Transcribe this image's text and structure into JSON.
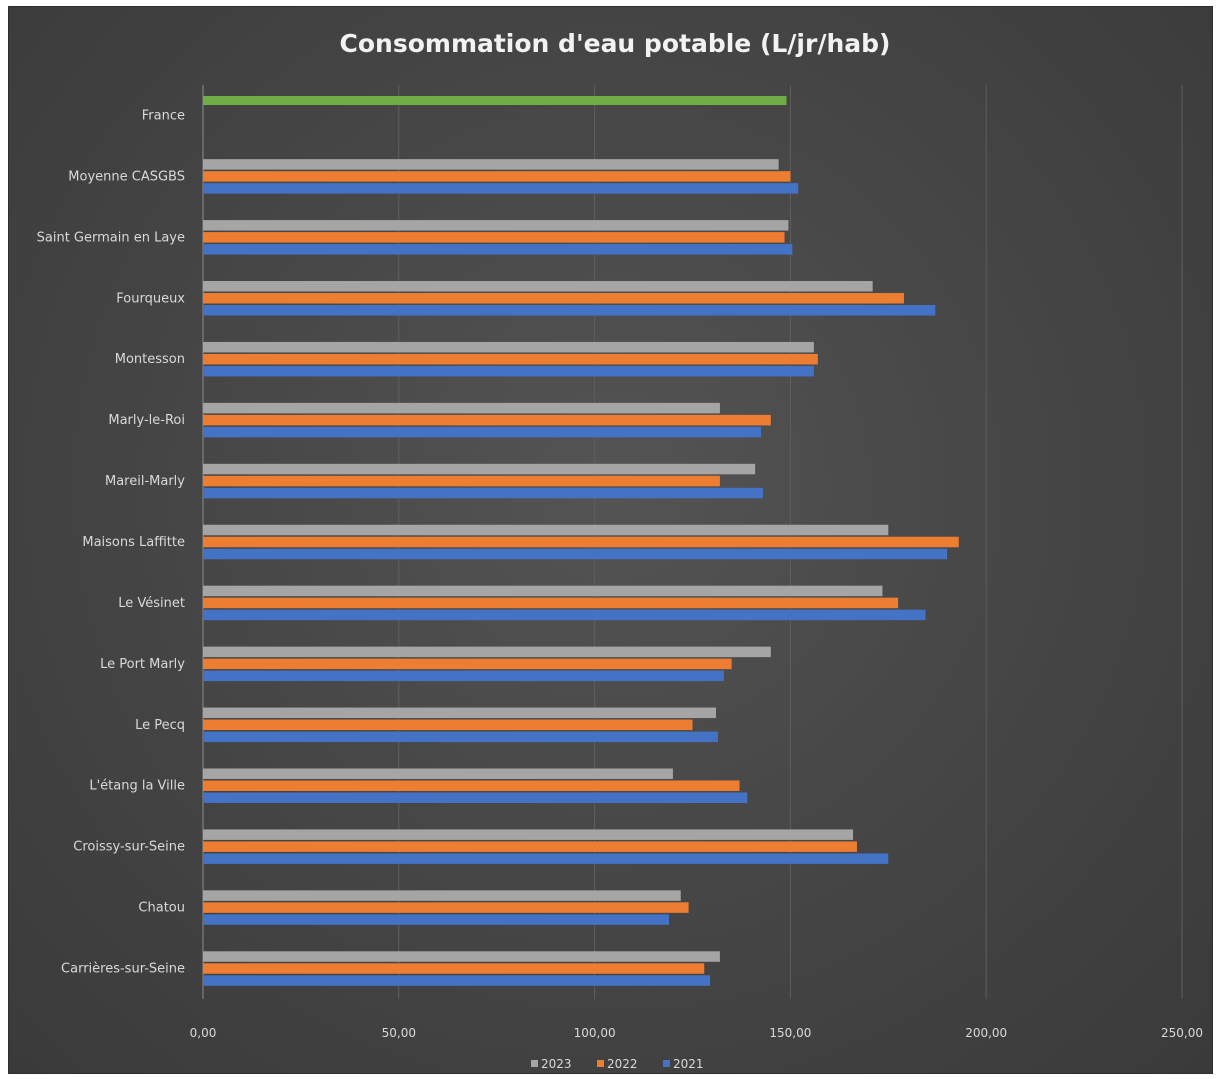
{
  "chart_data": {
    "type": "bar",
    "orientation": "horizontal",
    "title": "Consommation d'eau potable (L/jr/hab)",
    "xlabel": "",
    "ylabel": "",
    "xlim": [
      0,
      250
    ],
    "x_ticks": [
      "0,00",
      "50,00",
      "100,00",
      "150,00",
      "200,00",
      "250,00"
    ],
    "grid": true,
    "legend_position": "bottom",
    "categories": [
      "France",
      "Moyenne CASGBS",
      "Saint Germain en Laye",
      "Fourqueux",
      "Montesson",
      "Marly-le-Roi",
      "Mareil-Marly",
      "Maisons Laffitte",
      "Le Vésinet",
      "Le Port Marly",
      "Le Pecq",
      "L'étang la Ville",
      "Croissy-sur-Seine",
      "Chatou",
      "Carrières-sur-Seine"
    ],
    "france_reference": {
      "value": 149,
      "color": "#70ad47"
    },
    "series": [
      {
        "name": "2023",
        "color": "#a5a5a5",
        "values": [
          null,
          147,
          149.5,
          171,
          156,
          132,
          141,
          175,
          173.5,
          145,
          131,
          120,
          166,
          122,
          132
        ]
      },
      {
        "name": "2022",
        "color": "#ed7d31",
        "values": [
          null,
          150,
          148.5,
          179,
          157,
          145,
          132,
          193,
          177.5,
          135,
          125,
          137,
          167,
          124,
          128
        ]
      },
      {
        "name": "2021",
        "color": "#4472c4",
        "values": [
          null,
          152,
          150.5,
          187,
          156,
          142.5,
          143,
          190,
          184.5,
          133,
          131.5,
          139,
          175,
          119,
          129.5
        ]
      }
    ],
    "legend_order": [
      "2023",
      "2022",
      "2021"
    ]
  }
}
